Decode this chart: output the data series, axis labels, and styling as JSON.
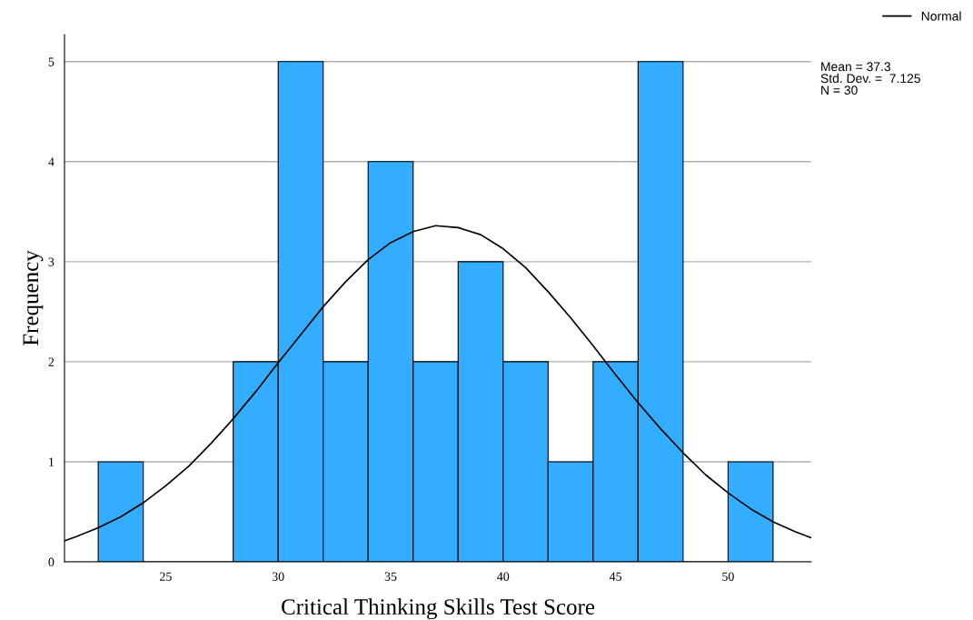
{
  "chart_data": {
    "type": "histogram",
    "xlabel": "Critical Thinking Skills Test Score",
    "ylabel": "Frequency",
    "bins": [
      22,
      24,
      26,
      28,
      30,
      32,
      34,
      36,
      38,
      40,
      42,
      44,
      46,
      48,
      50,
      52
    ],
    "values": [
      1,
      0,
      0,
      2,
      5,
      2,
      4,
      2,
      3,
      2,
      1,
      2,
      5,
      0,
      1
    ],
    "color": "#33adff",
    "series": [
      {
        "type": "line",
        "name": "Normal",
        "color": "#000000",
        "x": [
          20.5,
          21,
          22,
          23,
          24,
          25,
          26,
          27,
          28,
          29,
          30,
          31,
          32,
          33,
          34,
          35,
          36,
          37,
          38,
          39,
          40,
          41,
          42,
          43,
          44,
          45,
          46,
          47,
          48,
          49,
          50,
          51,
          52,
          53,
          53.7
        ],
        "values": [
          0.21,
          0.25,
          0.34,
          0.45,
          0.59,
          0.76,
          0.95,
          1.18,
          1.43,
          1.7,
          1.99,
          2.27,
          2.55,
          2.8,
          3.02,
          3.19,
          3.3,
          3.36,
          3.34,
          3.27,
          3.13,
          2.94,
          2.7,
          2.44,
          2.16,
          1.87,
          1.59,
          1.33,
          1.09,
          0.87,
          0.69,
          0.53,
          0.4,
          0.3,
          0.24
        ]
      }
    ],
    "xlim": [
      20.5,
      53.7
    ],
    "xticks": [
      25,
      30,
      35,
      40,
      45,
      50
    ],
    "ylim": [
      0,
      5.27
    ],
    "yticks": [
      0,
      1,
      2,
      3,
      4,
      5
    ],
    "grid": "y",
    "legend": "top right",
    "annotations": [
      "Mean = 37.3",
      "Std. Dev. =  7.125",
      "N = 30"
    ]
  }
}
